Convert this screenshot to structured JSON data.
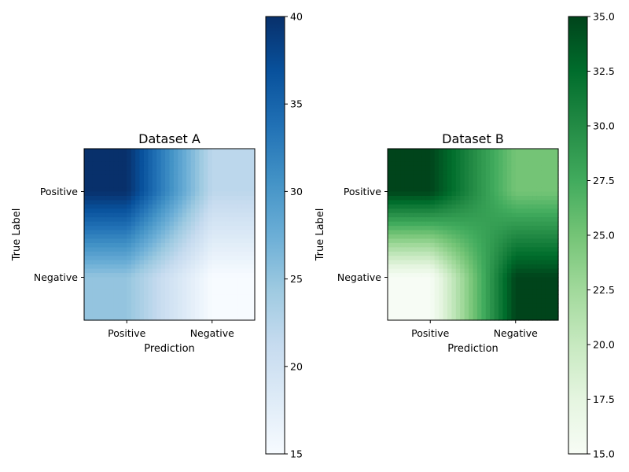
{
  "chart_data": [
    {
      "type": "heatmap",
      "title": "Dataset A",
      "xlabel": "Prediction",
      "ylabel": "True Label",
      "x_categories": [
        "Positive",
        "Negative"
      ],
      "y_categories": [
        "Positive",
        "Negative"
      ],
      "interpolation": "smooth",
      "values": [
        [
          40,
          22
        ],
        [
          25,
          15
        ]
      ],
      "colormap": "Blues",
      "color_range": [
        15,
        40
      ],
      "colorbar_ticks": [
        "15",
        "20",
        "25",
        "30",
        "35",
        "40"
      ],
      "colors": [
        "#f7fbff",
        "#deebf7",
        "#c6dbef",
        "#9ecae1",
        "#6baed6",
        "#4292c6",
        "#2171b5",
        "#08519c",
        "#08306b"
      ]
    },
    {
      "type": "heatmap",
      "title": "Dataset B",
      "xlabel": "Prediction",
      "ylabel": "True Label",
      "x_categories": [
        "Positive",
        "Negative"
      ],
      "y_categories": [
        "Positive",
        "Negative"
      ],
      "interpolation": "smooth",
      "values": [
        [
          35,
          25
        ],
        [
          15,
          35
        ]
      ],
      "colormap": "Greens",
      "color_range": [
        15,
        35
      ],
      "colorbar_ticks": [
        "15.0",
        "17.5",
        "20.0",
        "22.5",
        "25.0",
        "27.5",
        "30.0",
        "32.5",
        "35.0"
      ],
      "colors": [
        "#f7fcf5",
        "#e5f5e0",
        "#c7e9c0",
        "#a1d99b",
        "#74c476",
        "#41ab5d",
        "#238b45",
        "#006d2c",
        "#00441b"
      ]
    }
  ]
}
